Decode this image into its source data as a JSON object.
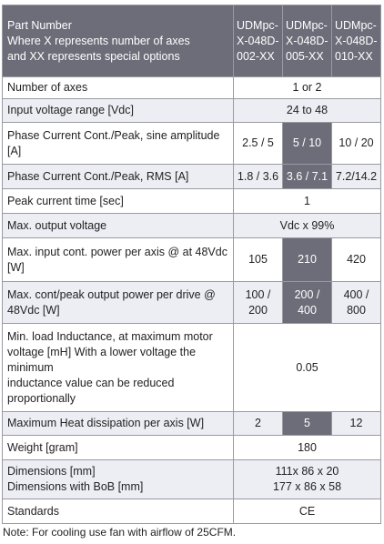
{
  "header": {
    "label": [
      "Part Number",
      "Where X represents number of axes",
      "and XX represents special options"
    ],
    "columns": [
      "UDMpc-X-048D-002-XX",
      "UDMpc-X-048D-005-XX",
      "UDMpc-X-048D-010-XX"
    ]
  },
  "rows": [
    {
      "label": [
        "Number of axes"
      ],
      "cells": [
        "1 or 2"
      ]
    },
    {
      "label": [
        "Input voltage range [Vdc]"
      ],
      "cells": [
        "24 to 48"
      ]
    },
    {
      "label": [
        "Phase Current Cont./Peak, sine amplitude [A]"
      ],
      "cells": [
        "2.5 / 5",
        "5 / 10",
        "10 / 20"
      ]
    },
    {
      "label": [
        "Phase Current Cont./Peak, RMS [A]"
      ],
      "cells": [
        "1.8 / 3.6",
        "3.6 / 7.1",
        "7.2/14.2"
      ]
    },
    {
      "label": [
        "Peak current time [sec]"
      ],
      "cells": [
        "1"
      ]
    },
    {
      "label": [
        "Max. output voltage"
      ],
      "cells": [
        "Vdc x 99%"
      ]
    },
    {
      "label": [
        "Max. input cont. power per axis @ at 48Vdc [W]"
      ],
      "cells": [
        "105",
        "210",
        "420"
      ]
    },
    {
      "label": [
        "Max. cont/peak output power per drive @ 48Vdc [W]"
      ],
      "cells": [
        "100 / 200",
        "200 / 400",
        "400 / 800"
      ]
    },
    {
      "label": [
        "Min. load Inductance, at maximum motor voltage [mH] With a lower voltage the minimum",
        "inductance value can be reduced proportionally"
      ],
      "cells": [
        "0.05"
      ]
    },
    {
      "label": [
        "Maximum Heat dissipation per axis [W]"
      ],
      "cells": [
        "2",
        "5",
        "12"
      ]
    },
    {
      "label": [
        "Weight [gram]"
      ],
      "cells": [
        "180"
      ]
    },
    {
      "label": [
        "Dimensions [mm]",
        "Dimensions with BoB [mm]"
      ],
      "cells": [
        [
          "111x 86 x 20",
          "177 x 86 x 58"
        ]
      ]
    },
    {
      "label": [
        "Standards"
      ],
      "cells": [
        "CE"
      ]
    }
  ],
  "note": "Note: For cooling use fan with airflow of 25CFM."
}
